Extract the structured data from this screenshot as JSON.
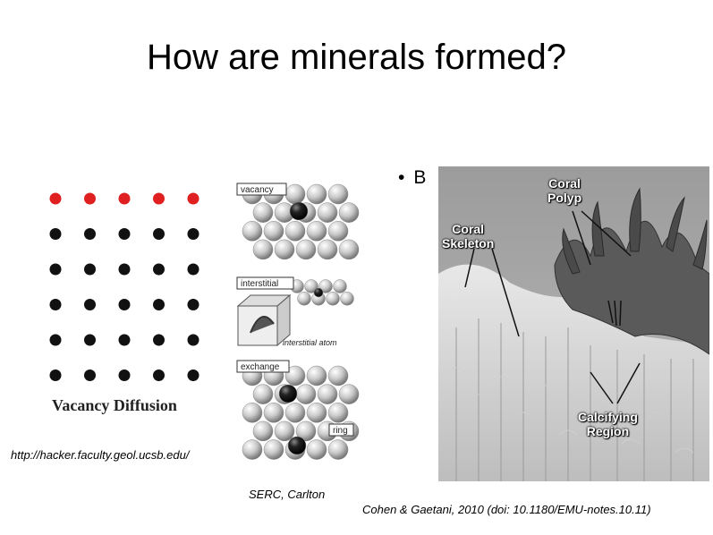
{
  "slide": {
    "title": "How are minerals formed?",
    "bullet_text": "B"
  },
  "left_figure": {
    "label": "Vacancy Diffusion",
    "caption": "http://hacker.faculty.geol.ucsb.edu/",
    "colors": {
      "top_row": "#e02020",
      "other_rows": "#111111"
    }
  },
  "middle_figure": {
    "labels": {
      "vacancy": "vacancy",
      "interstitial": "interstitial",
      "interstitial_atom": "interstitial atom",
      "exchange": "exchange",
      "ring": "ring"
    },
    "caption": "SERC, Carlton"
  },
  "right_figure": {
    "labels": {
      "coral_polyp": "Coral\nPolyp",
      "coral_skeleton": "Coral\nSkeleton",
      "calcifying_region": "Calcifying\nRegion"
    },
    "caption": "Cohen & Gaetani, 2010 (doi: 10.1180/EMU-notes.10.11)"
  }
}
